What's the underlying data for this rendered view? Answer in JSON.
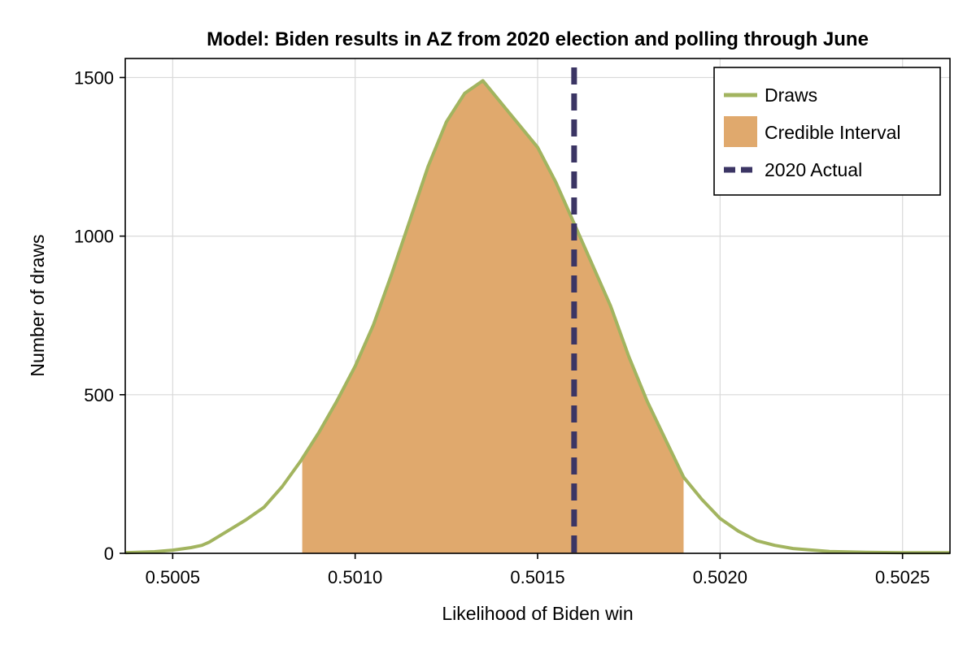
{
  "chart_data": {
    "type": "area",
    "title": "Model: Biden results in AZ from 2020 election and polling through June",
    "xlabel": "Likelihood of Biden win",
    "ylabel": "Number of draws",
    "xlim": [
      0.50037,
      0.50263
    ],
    "ylim": [
      0,
      1560
    ],
    "x_ticks": [
      0.5005,
      0.501,
      0.5015,
      0.502,
      0.5025
    ],
    "x_tick_labels": [
      "0.5005",
      "0.5010",
      "0.5015",
      "0.5020",
      "0.5025"
    ],
    "y_ticks": [
      0,
      500,
      1000,
      1500
    ],
    "y_tick_labels": [
      "0",
      "500",
      "1000",
      "1500"
    ],
    "grid": true,
    "legend_position": "top-right",
    "series": [
      {
        "name": "Draws",
        "kind": "line",
        "color": "#A2B45F",
        "x": [
          0.50037,
          0.50045,
          0.5005,
          0.50055,
          0.50058,
          0.5006,
          0.50065,
          0.5007,
          0.50075,
          0.5008,
          0.50085,
          0.5009,
          0.50095,
          0.501,
          0.50105,
          0.5011,
          0.50115,
          0.5012,
          0.50125,
          0.5013,
          0.50135,
          0.5014,
          0.50145,
          0.5015,
          0.50155,
          0.5016,
          0.50165,
          0.5017,
          0.50175,
          0.5018,
          0.50185,
          0.5019,
          0.50195,
          0.502,
          0.50205,
          0.5021,
          0.50215,
          0.5022,
          0.5023,
          0.5024,
          0.5025,
          0.50263
        ],
        "y": [
          2,
          5,
          10,
          18,
          25,
          35,
          70,
          105,
          145,
          210,
          290,
          380,
          480,
          590,
          720,
          880,
          1050,
          1220,
          1360,
          1450,
          1490,
          1420,
          1350,
          1280,
          1170,
          1040,
          910,
          780,
          620,
          480,
          360,
          240,
          170,
          110,
          70,
          40,
          25,
          15,
          6,
          3,
          2,
          2
        ]
      },
      {
        "name": "Credible Interval",
        "kind": "band",
        "color": "#E0A96D",
        "x_range": [
          0.500855,
          0.5019
        ]
      },
      {
        "name": "2020 Actual",
        "kind": "vline",
        "color": "#3B3564",
        "x": 0.5016
      }
    ]
  }
}
